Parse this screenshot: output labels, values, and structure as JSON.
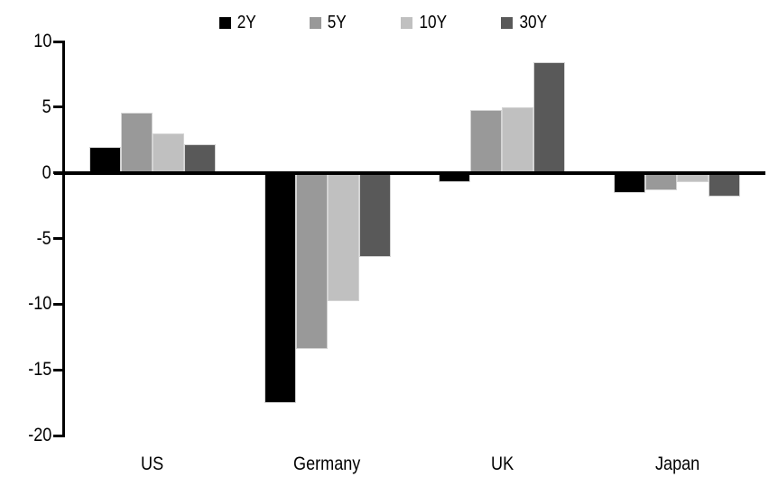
{
  "chart_data": {
    "type": "bar",
    "title": "",
    "categories": [
      "US",
      "Germany",
      "UK",
      "Japan"
    ],
    "series": [
      {
        "name": "2Y",
        "color": "#000000",
        "values": [
          2.0,
          -17.5,
          -0.7,
          -1.5
        ]
      },
      {
        "name": "5Y",
        "color": "#999999",
        "values": [
          4.6,
          -13.4,
          4.8,
          -1.3
        ]
      },
      {
        "name": "10Y",
        "color": "#c0c0c0",
        "values": [
          3.0,
          -9.8,
          5.0,
          -0.7
        ]
      },
      {
        "name": "30Y",
        "color": "#595959",
        "values": [
          2.2,
          -6.4,
          8.4,
          -1.8
        ]
      }
    ],
    "ylim": [
      -20,
      10
    ],
    "ytick_labels": [
      "10",
      "5",
      "0",
      "-5",
      "-10",
      "-15",
      "-20"
    ],
    "yticks": [
      10,
      5,
      0,
      -5,
      -10,
      -15,
      -20
    ],
    "xlabel": "",
    "ylabel": "",
    "grid": false,
    "legend_position": "top-center",
    "background": "#ffffff",
    "axis_color": "#000000",
    "bar_border_color": "#d4d4d4"
  }
}
